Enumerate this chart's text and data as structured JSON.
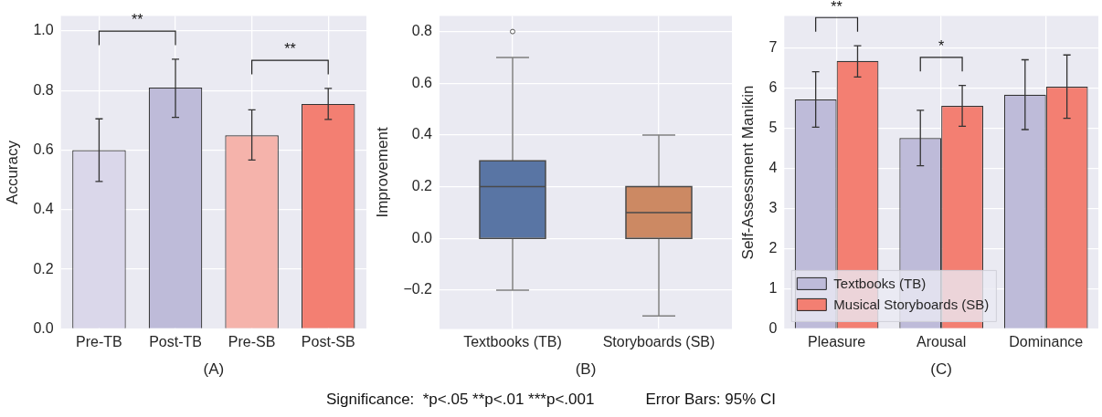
{
  "chart_data": [
    {
      "type": "bar",
      "xlabel": "(A)",
      "ylabel": "Accuracy",
      "categories": [
        "Pre-TB",
        "Post-TB",
        "Pre-SB",
        "Post-SB"
      ],
      "values": [
        0.6,
        0.81,
        0.65,
        0.755
      ],
      "colors": [
        "#dad7ea",
        "#bebbd9",
        "#f5b3ab",
        "#f37f72"
      ],
      "errors": [
        [
          0.495,
          0.705
        ],
        [
          0.71,
          0.905
        ],
        [
          0.567,
          0.735
        ],
        [
          0.703,
          0.807
        ]
      ],
      "ylim": [
        0,
        1.05
      ],
      "yticks": [
        {
          "value": 0,
          "label": "0.0"
        },
        0.2,
        0.4,
        0.6,
        0.8,
        {
          "value": 1,
          "label": "1.0"
        }
      ],
      "grid": true,
      "annotations": [
        "**",
        "**"
      ]
    },
    {
      "type": "box",
      "xlabel": "(B)",
      "ylabel": "Improvement",
      "categories": [
        "Textbooks (TB)",
        "Storyboards (SB)"
      ],
      "colors": [
        "#5975a4",
        "#cc8963"
      ],
      "boxes": [
        {
          "low": -0.2,
          "q1": 0,
          "median": 0.2,
          "q3": 0.3,
          "high": 0.7,
          "outliers": [
            0.8
          ]
        },
        {
          "low": -0.3,
          "q1": 0,
          "median": 0.1,
          "q3": 0.2,
          "high": 0.4
        }
      ],
      "ylim": [
        -0.35,
        0.86
      ],
      "yticks": [
        {
          "value": -0.2,
          "label": "−0.2"
        },
        {
          "value": 0,
          "label": "0.0"
        },
        0.2,
        0.4,
        0.6,
        0.8
      ],
      "grid": true,
      "annotations": [
        "Significance:  *p<.05 **p<.01 ***p<.001",
        "Error Bars: 95% CI"
      ]
    },
    {
      "type": "bar",
      "xlabel": "(C)",
      "ylabel": "Self-Assessment Manikin",
      "categories": [
        "Pleasure",
        "Arousal",
        "Dominance"
      ],
      "series": [
        {
          "name": "Textbooks (TB)",
          "color": "#bebbd9",
          "values": [
            5.72,
            4.76,
            5.84
          ],
          "errors": [
            [
              5.03,
              6.41
            ],
            [
              4.07,
              5.45
            ],
            [
              4.97,
              6.71
            ]
          ]
        },
        {
          "name": "Musical Storyboards (SB)",
          "color": "#f37f72",
          "values": [
            6.68,
            5.56,
            6.04
          ],
          "errors": [
            [
              6.28,
              7.06
            ],
            [
              5.05,
              6.07
            ],
            [
              5.25,
              6.83
            ]
          ]
        }
      ],
      "ylim": [
        0,
        7.8
      ],
      "yticks": [
        0,
        1,
        2,
        3,
        4,
        5,
        6,
        7
      ],
      "grid": true,
      "legend": "bottom left",
      "annotations": [
        "**",
        "*"
      ]
    }
  ]
}
